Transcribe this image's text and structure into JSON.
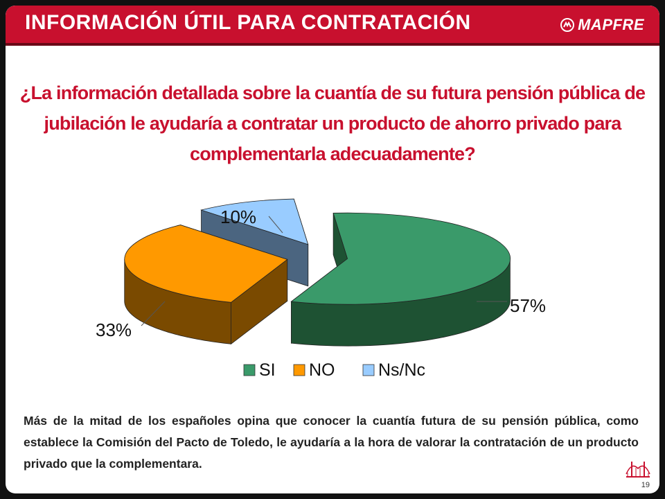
{
  "header": {
    "title": "INFORMACIÓN ÚTIL PARA CONTRATACIÓN",
    "brand": "MAPFRE",
    "brand_icon": "mapfre-logo-icon"
  },
  "question": "¿La información detallada sobre la cuantía de su futura pensión pública de jubilación le ayudaría a contratar un producto de ahorro privado para complementarla adecuadamente?",
  "chart_data": {
    "type": "pie",
    "style": "3d-exploded",
    "categories": [
      "SI",
      "NO",
      "Ns/Nc"
    ],
    "values": [
      57,
      33,
      10
    ],
    "data_labels": [
      "57%",
      "33%",
      "10%"
    ],
    "colors": [
      "#3a9a6a",
      "#ff9900",
      "#99ccff"
    ],
    "side_colors": [
      "#1e5233",
      "#7a4a00",
      "#4b6580"
    ],
    "legend": {
      "placement": "bottom",
      "entries": [
        "SI",
        "NO",
        "Ns/Nc"
      ]
    }
  },
  "summary": "Más de la mitad de los españoles opina que conocer la cuantía futura de su pensión pública, como establece la Comisión del Pacto de Toledo, le ayudaría a la hora de valorar la contratación de un producto privado que la complementara.",
  "page_number": "19",
  "footer_icon": "bridge-icon"
}
